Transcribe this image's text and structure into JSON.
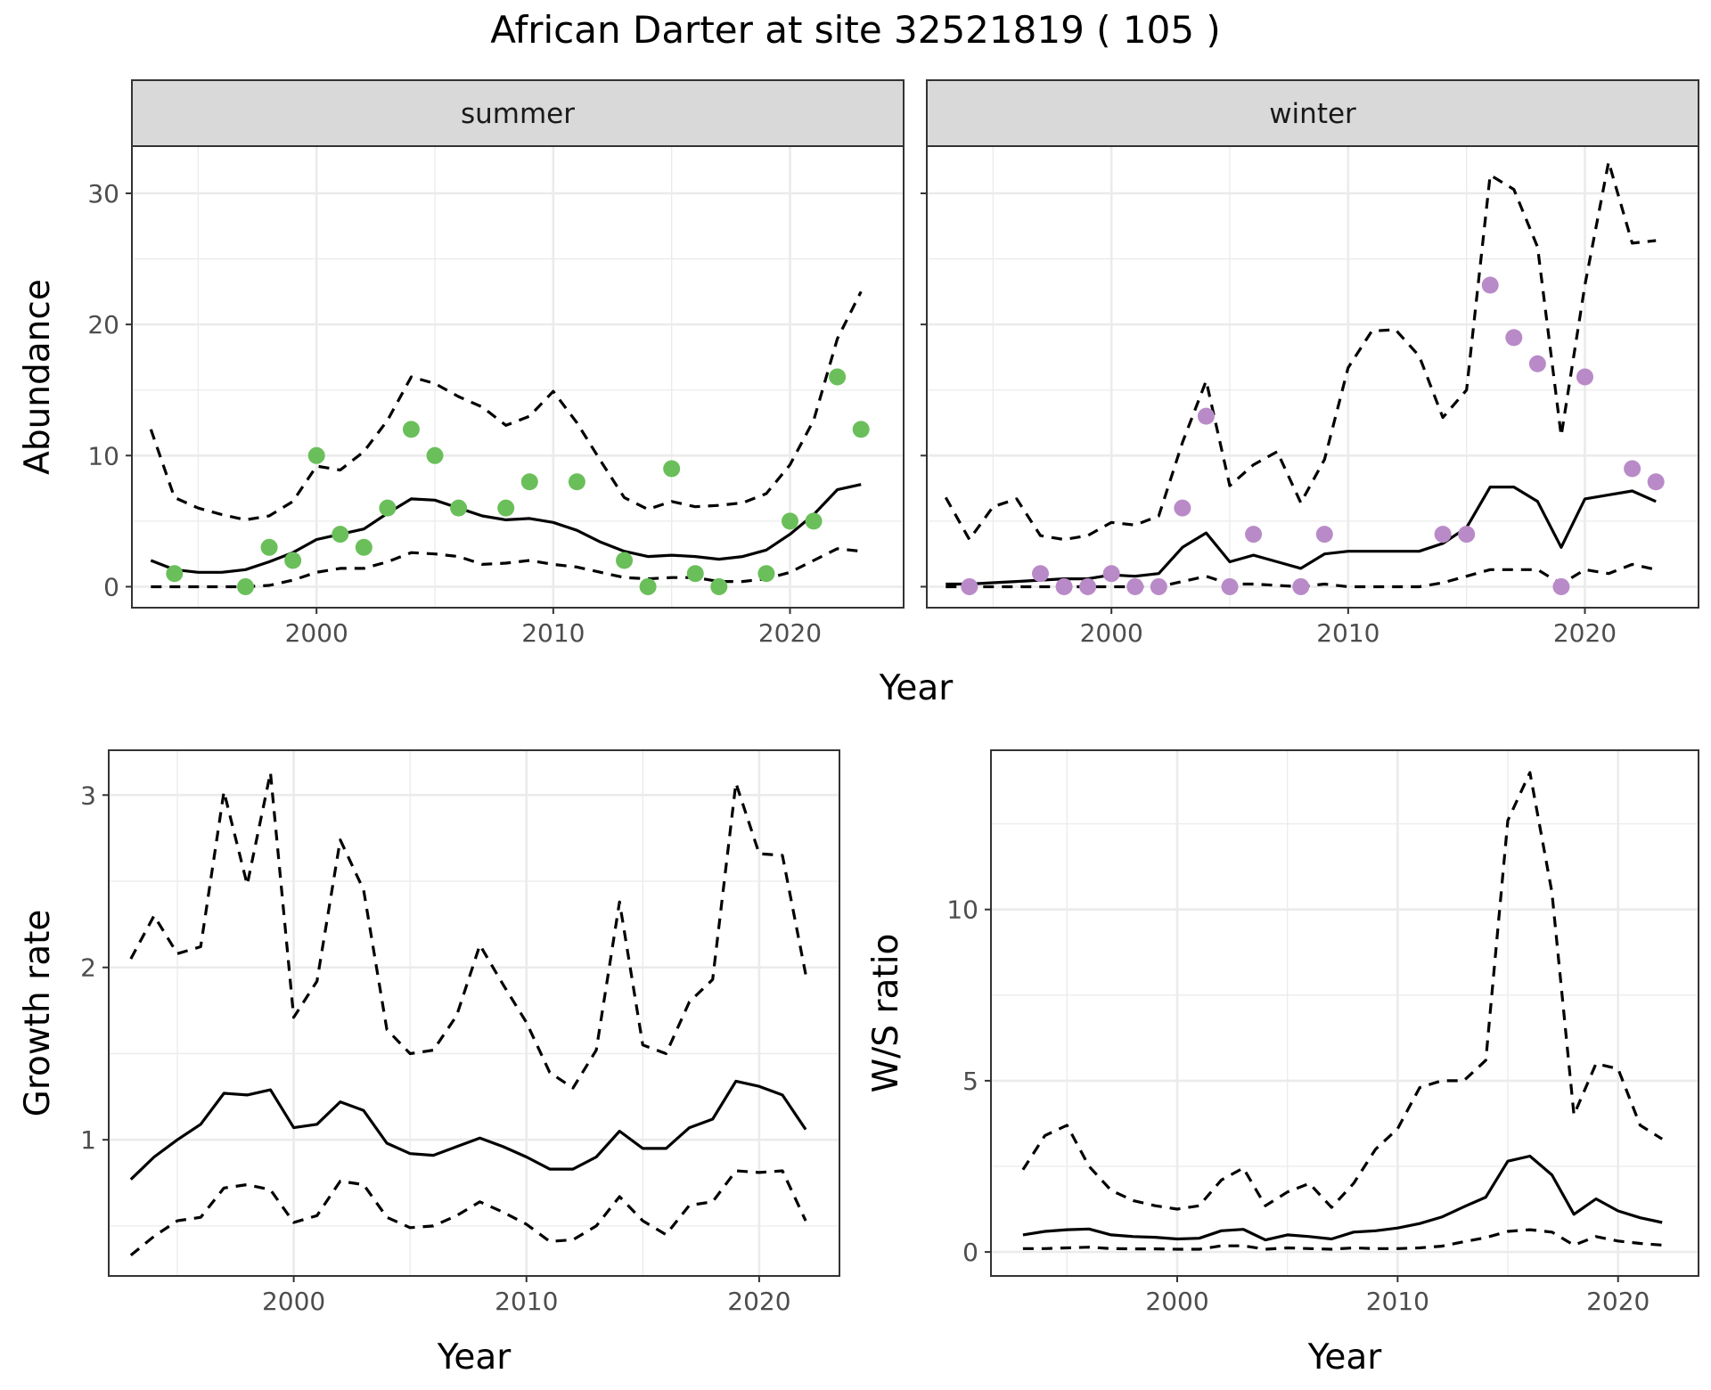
{
  "figure": {
    "title": "African Darter at site 32521819 ( 105 )",
    "point_colors": {
      "summer": "#6abf5a",
      "winter": "#b98ac8"
    }
  },
  "chart_data": [
    {
      "type": "line",
      "id": "abundance-summer",
      "strip": "summer",
      "ylabel": "Abundance",
      "xlabel": "",
      "xlim": [
        1992.2,
        2024.8
      ],
      "ylim": [
        -1.6,
        33.6
      ],
      "x_ticks": [
        2000,
        2010,
        2020
      ],
      "y_ticks": [
        0,
        10,
        20,
        30
      ],
      "grid": true,
      "x": [
        1993,
        1994,
        1995,
        1996,
        1997,
        1998,
        1999,
        2000,
        2001,
        2002,
        2003,
        2004,
        2005,
        2006,
        2007,
        2008,
        2009,
        2010,
        2011,
        2012,
        2013,
        2014,
        2015,
        2016,
        2017,
        2018,
        2019,
        2020,
        2021,
        2022,
        2023
      ],
      "series": [
        {
          "role": "mean",
          "style": "solid",
          "values": [
            2.0,
            1.3,
            1.1,
            1.1,
            1.3,
            1.9,
            2.6,
            3.6,
            4.0,
            4.4,
            5.6,
            6.7,
            6.6,
            6.0,
            5.4,
            5.1,
            5.2,
            4.9,
            4.3,
            3.4,
            2.7,
            2.3,
            2.4,
            2.3,
            2.1,
            2.3,
            2.8,
            4.0,
            5.5,
            7.4,
            7.8
          ]
        },
        {
          "role": "upper",
          "style": "dashed",
          "values": [
            12.0,
            6.8,
            6.0,
            5.5,
            5.1,
            5.4,
            6.5,
            9.2,
            8.9,
            10.3,
            12.7,
            16.0,
            15.5,
            14.5,
            13.7,
            12.3,
            13.0,
            14.9,
            12.5,
            9.6,
            6.8,
            5.9,
            6.5,
            6.1,
            6.2,
            6.4,
            7.1,
            9.3,
            12.7,
            18.9,
            22.5
          ]
        },
        {
          "role": "lower",
          "style": "dashed",
          "values": [
            0.0,
            0.0,
            0.0,
            0.0,
            0.0,
            0.1,
            0.5,
            1.1,
            1.4,
            1.4,
            1.9,
            2.6,
            2.5,
            2.3,
            1.7,
            1.8,
            2.0,
            1.7,
            1.5,
            1.1,
            0.7,
            0.6,
            0.7,
            0.7,
            0.4,
            0.4,
            0.6,
            1.1,
            2.0,
            2.9,
            2.7
          ]
        }
      ],
      "points": {
        "x": [
          1994,
          1997,
          1998,
          1999,
          2000,
          2001,
          2002,
          2003,
          2004,
          2005,
          2006,
          2008,
          2009,
          2011,
          2013,
          2014,
          2015,
          2016,
          2017,
          2019,
          2020,
          2021,
          2022,
          2023
        ],
        "y": [
          1,
          0,
          3,
          2,
          10,
          4,
          3,
          6,
          12,
          10,
          6,
          6,
          8,
          8,
          2,
          0,
          9,
          1,
          0,
          1,
          5,
          5,
          16,
          12
        ]
      }
    },
    {
      "type": "line",
      "id": "abundance-winter",
      "strip": "winter",
      "ylabel": "",
      "xlabel": "",
      "xlim": [
        1992.2,
        2024.8
      ],
      "ylim": [
        -1.6,
        33.6
      ],
      "x_ticks": [
        2000,
        2010,
        2020
      ],
      "y_ticks": [
        0,
        10,
        20,
        30
      ],
      "grid": true,
      "x": [
        1993,
        1994,
        1995,
        1996,
        1997,
        1998,
        1999,
        2000,
        2001,
        2002,
        2003,
        2004,
        2005,
        2006,
        2007,
        2008,
        2009,
        2010,
        2011,
        2012,
        2013,
        2014,
        2015,
        2016,
        2017,
        2018,
        2019,
        2020,
        2021,
        2022,
        2023
      ],
      "series": [
        {
          "role": "mean",
          "style": "solid",
          "values": [
            0.2,
            0.2,
            0.3,
            0.4,
            0.5,
            0.6,
            0.6,
            0.9,
            0.8,
            1.0,
            3.0,
            4.1,
            1.9,
            2.4,
            1.9,
            1.4,
            2.5,
            2.7,
            2.7,
            2.7,
            2.7,
            3.3,
            4.5,
            7.6,
            7.6,
            6.5,
            3.0,
            6.7,
            7.0,
            7.3,
            6.5
          ]
        },
        {
          "role": "upper",
          "style": "dashed",
          "values": [
            6.8,
            3.6,
            6.1,
            6.7,
            3.9,
            3.6,
            3.9,
            4.9,
            4.7,
            5.4,
            11.0,
            15.7,
            7.7,
            9.3,
            10.3,
            6.4,
            9.7,
            16.7,
            19.5,
            19.6,
            17.6,
            12.9,
            15.0,
            31.4,
            30.3,
            25.9,
            11.5,
            23.0,
            32.4,
            26.2,
            26.4
          ]
        },
        {
          "role": "lower",
          "style": "dashed",
          "values": [
            0.0,
            0.0,
            0.0,
            0.0,
            0.0,
            0.0,
            0.0,
            0.0,
            0.0,
            0.0,
            0.4,
            0.8,
            0.2,
            0.2,
            0.1,
            0.0,
            0.2,
            0.0,
            0.0,
            0.0,
            0.0,
            0.3,
            0.8,
            1.3,
            1.3,
            1.3,
            0.2,
            1.3,
            1.0,
            1.7,
            1.3
          ]
        }
      ],
      "points": {
        "x": [
          1994,
          1997,
          1998,
          1999,
          2000,
          2001,
          2002,
          2003,
          2004,
          2005,
          2006,
          2008,
          2009,
          2014,
          2015,
          2016,
          2017,
          2018,
          2019,
          2020,
          2022,
          2023
        ],
        "y": [
          0,
          1,
          0,
          0,
          1,
          0,
          0,
          6,
          13,
          0,
          4,
          0,
          4,
          4,
          4,
          23,
          19,
          17,
          0,
          16,
          9,
          8
        ]
      }
    },
    {
      "type": "line",
      "id": "growth-rate",
      "ylabel": "Growth rate",
      "xlabel": "Year",
      "xlim": [
        1992.05,
        2023.45
      ],
      "ylim": [
        0.21,
        3.26
      ],
      "x_ticks": [
        2000,
        2010,
        2020
      ],
      "y_ticks": [
        1,
        2,
        3
      ],
      "grid": true,
      "x": [
        1993,
        1994,
        1995,
        1996,
        1997,
        1998,
        1999,
        2000,
        2001,
        2002,
        2003,
        2004,
        2005,
        2006,
        2007,
        2008,
        2009,
        2010,
        2011,
        2012,
        2013,
        2014,
        2015,
        2016,
        2017,
        2018,
        2019,
        2020,
        2021,
        2022
      ],
      "series": [
        {
          "role": "mean",
          "style": "solid",
          "values": [
            0.77,
            0.9,
            1.0,
            1.09,
            1.27,
            1.26,
            1.29,
            1.07,
            1.09,
            1.22,
            1.17,
            0.98,
            0.92,
            0.91,
            0.96,
            1.01,
            0.96,
            0.9,
            0.83,
            0.83,
            0.9,
            1.05,
            0.95,
            0.95,
            1.07,
            1.12,
            1.34,
            1.31,
            1.26,
            1.06
          ]
        },
        {
          "role": "upper",
          "style": "dashed",
          "values": [
            2.05,
            2.3,
            2.08,
            2.12,
            3.02,
            2.48,
            3.13,
            1.71,
            1.92,
            2.74,
            2.45,
            1.64,
            1.5,
            1.52,
            1.72,
            2.13,
            1.9,
            1.68,
            1.39,
            1.3,
            1.52,
            2.38,
            1.55,
            1.5,
            1.8,
            1.93,
            3.07,
            2.66,
            2.65,
            1.96
          ]
        },
        {
          "role": "lower",
          "style": "dashed",
          "values": [
            0.33,
            0.44,
            0.53,
            0.55,
            0.72,
            0.74,
            0.71,
            0.52,
            0.56,
            0.76,
            0.74,
            0.55,
            0.49,
            0.5,
            0.56,
            0.64,
            0.58,
            0.51,
            0.41,
            0.42,
            0.5,
            0.67,
            0.53,
            0.45,
            0.62,
            0.64,
            0.82,
            0.81,
            0.82,
            0.53
          ]
        }
      ]
    },
    {
      "type": "line",
      "id": "ws-ratio",
      "ylabel": "W/S ratio",
      "xlabel": "Year",
      "xlim": [
        1991.55,
        2023.65
      ],
      "ylim": [
        -0.7,
        14.65
      ],
      "x_ticks": [
        2000,
        2010,
        2020
      ],
      "y_ticks": [
        0,
        5,
        10
      ],
      "grid": true,
      "x": [
        1993,
        1994,
        1995,
        1996,
        1997,
        1998,
        1999,
        2000,
        2001,
        2002,
        2003,
        2004,
        2005,
        2006,
        2007,
        2008,
        2009,
        2010,
        2011,
        2012,
        2013,
        2014,
        2015,
        2016,
        2017,
        2018,
        2019,
        2020,
        2021,
        2022
      ],
      "series": [
        {
          "role": "mean",
          "style": "solid",
          "values": [
            0.5,
            0.6,
            0.65,
            0.67,
            0.5,
            0.45,
            0.43,
            0.38,
            0.4,
            0.62,
            0.66,
            0.35,
            0.5,
            0.45,
            0.38,
            0.58,
            0.62,
            0.7,
            0.83,
            1.02,
            1.32,
            1.6,
            2.65,
            2.8,
            2.25,
            1.1,
            1.55,
            1.2,
            1.0,
            0.86
          ]
        },
        {
          "role": "upper",
          "style": "dashed",
          "values": [
            2.4,
            3.4,
            3.7,
            2.5,
            1.8,
            1.5,
            1.35,
            1.25,
            1.35,
            2.1,
            2.45,
            1.35,
            1.75,
            2.0,
            1.3,
            2.0,
            3.0,
            3.6,
            4.8,
            5.0,
            5.0,
            5.6,
            12.6,
            14.0,
            10.5,
            4.0,
            5.5,
            5.35,
            3.7,
            3.3
          ]
        },
        {
          "role": "lower",
          "style": "dashed",
          "values": [
            0.1,
            0.1,
            0.12,
            0.14,
            0.1,
            0.09,
            0.09,
            0.08,
            0.08,
            0.18,
            0.18,
            0.08,
            0.12,
            0.1,
            0.08,
            0.12,
            0.1,
            0.1,
            0.12,
            0.17,
            0.3,
            0.42,
            0.6,
            0.65,
            0.58,
            0.2,
            0.45,
            0.32,
            0.25,
            0.2
          ]
        }
      ]
    }
  ]
}
